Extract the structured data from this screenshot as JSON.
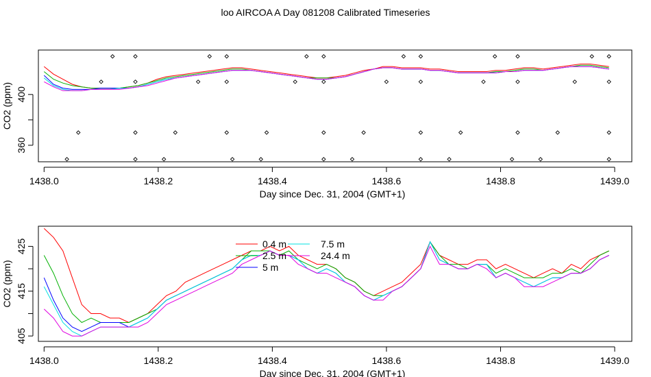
{
  "window": {
    "title": "loo AIRCOA A  Day 081208  Calibrated Timeseries"
  },
  "legend": [
    {
      "label": "0.4 m",
      "color": "#ff0000"
    },
    {
      "label": "2.5 m",
      "color": "#00b000"
    },
    {
      "label": "5 m",
      "color": "#0000ff"
    },
    {
      "label": "7.5 m",
      "color": "#00e0e0"
    },
    {
      "label": "24.4 m",
      "color": "#e000e0"
    }
  ],
  "chart_data": [
    {
      "type": "line",
      "panel": "top",
      "title": "",
      "xlabel": "Day since Dec. 31, 2004 (GMT+1)",
      "ylabel": "CO2 (ppm)",
      "xlim": [
        1437.99,
        1439.03
      ],
      "ylim": [
        347,
        435
      ],
      "xticks": [
        1438.0,
        1438.2,
        1438.4,
        1438.6,
        1438.8,
        1439.0
      ],
      "xtick_labels": [
        "1438.0",
        "1438.2",
        "1438.4",
        "1438.6",
        "1438.8",
        "1439.0"
      ],
      "yticks": [
        360,
        380,
        400
      ],
      "ytick_labels": [
        "360",
        "",
        "400"
      ],
      "grid": false,
      "series": [
        {
          "name": "0.4 m",
          "color": "#ff0000",
          "values": [
            422,
            416,
            412,
            408,
            406,
            405,
            405,
            405,
            405,
            406,
            407,
            409,
            412,
            414,
            415,
            416,
            417,
            418,
            419,
            420,
            421,
            421,
            420,
            419,
            418,
            417,
            416,
            415,
            414,
            413,
            413,
            414,
            415,
            417,
            419,
            420,
            422,
            422,
            421,
            421,
            421,
            420,
            420,
            419,
            418,
            418,
            418,
            418,
            419,
            419,
            420,
            421,
            421,
            420,
            421,
            422,
            423,
            424,
            424,
            423,
            422
          ]
        },
        {
          "name": "2.5 m",
          "color": "#00b000",
          "values": [
            418,
            412,
            409,
            407,
            406,
            405,
            405,
            405,
            405,
            406,
            407,
            409,
            411,
            413,
            414,
            415,
            416,
            417,
            418,
            419,
            420,
            420,
            419,
            418,
            417,
            416,
            415,
            414,
            413,
            413,
            413,
            413,
            414,
            416,
            418,
            420,
            421,
            421,
            420,
            420,
            420,
            419,
            419,
            418,
            417,
            417,
            417,
            417,
            418,
            418,
            419,
            420,
            420,
            419,
            420,
            421,
            422,
            423,
            423,
            422,
            421
          ]
        },
        {
          "name": "5 m",
          "color": "#0000ff",
          "values": [
            415,
            408,
            405,
            404,
            404,
            404,
            405,
            405,
            405,
            405,
            406,
            408,
            410,
            412,
            413,
            414,
            415,
            416,
            417,
            418,
            419,
            419,
            419,
            418,
            417,
            416,
            415,
            414,
            413,
            412,
            412,
            413,
            414,
            416,
            418,
            420,
            421,
            421,
            420,
            420,
            420,
            419,
            419,
            418,
            417,
            417,
            417,
            417,
            417,
            418,
            418,
            419,
            419,
            419,
            420,
            421,
            422,
            422,
            422,
            421,
            420
          ]
        },
        {
          "name": "7.5 m",
          "color": "#00e0e0",
          "values": [
            413,
            407,
            404,
            403,
            403,
            404,
            404,
            404,
            405,
            405,
            406,
            408,
            410,
            412,
            413,
            414,
            415,
            416,
            417,
            418,
            419,
            419,
            419,
            418,
            417,
            416,
            415,
            414,
            413,
            412,
            412,
            413,
            414,
            416,
            418,
            420,
            421,
            421,
            420,
            420,
            420,
            419,
            419,
            418,
            417,
            417,
            417,
            417,
            417,
            418,
            418,
            419,
            419,
            419,
            420,
            421,
            422,
            422,
            422,
            421,
            420
          ]
        },
        {
          "name": "24.4 m",
          "color": "#e000e0",
          "values": [
            410,
            406,
            403,
            403,
            403,
            404,
            404,
            404,
            404,
            405,
            406,
            407,
            409,
            411,
            413,
            414,
            415,
            416,
            417,
            418,
            419,
            419,
            419,
            418,
            417,
            416,
            415,
            414,
            413,
            412,
            412,
            413,
            414,
            416,
            418,
            420,
            421,
            421,
            420,
            420,
            420,
            419,
            419,
            418,
            417,
            417,
            417,
            417,
            417,
            418,
            418,
            419,
            419,
            419,
            420,
            421,
            422,
            422,
            422,
            421,
            420
          ]
        }
      ],
      "markers": {
        "row_430": [
          1438.12,
          1438.16,
          1438.29,
          1438.32,
          1438.46,
          1438.49,
          1438.63,
          1438.66,
          1438.79,
          1438.83,
          1438.96,
          1438.99
        ],
        "row_410": [
          1438.1,
          1438.16,
          1438.27,
          1438.32,
          1438.44,
          1438.49,
          1438.6,
          1438.66,
          1438.77,
          1438.83,
          1438.93,
          1438.99
        ],
        "row_370": [
          1438.06,
          1438.16,
          1438.23,
          1438.32,
          1438.39,
          1438.49,
          1438.56,
          1438.66,
          1438.73,
          1438.83,
          1438.9,
          1438.99
        ],
        "row_349": [
          1438.04,
          1438.16,
          1438.21,
          1438.33,
          1438.38,
          1438.49,
          1438.54,
          1438.66,
          1438.71,
          1438.82,
          1438.87,
          1438.99
        ]
      }
    },
    {
      "type": "line",
      "panel": "bottom",
      "title": "",
      "xlabel": "Day since Dec. 31, 2004 (GMT+1)",
      "ylabel": "CO2 (ppm)",
      "xlim": [
        1437.99,
        1439.03
      ],
      "ylim": [
        403.8,
        429.5
      ],
      "xticks": [
        1438.0,
        1438.2,
        1438.4,
        1438.6,
        1438.8,
        1439.0
      ],
      "xtick_labels": [
        "1438.0",
        "1438.2",
        "1438.4",
        "1438.6",
        "1438.8",
        "1439.0"
      ],
      "yticks": [
        405,
        410,
        415,
        420,
        425
      ],
      "ytick_labels": [
        "405",
        "",
        "415",
        "",
        "425"
      ],
      "grid": false,
      "series": [
        {
          "name": "0.4 m",
          "color": "#ff0000",
          "values": [
            429,
            427,
            424,
            418,
            412,
            410,
            410,
            409,
            409,
            408,
            409,
            410,
            412,
            414,
            415,
            417,
            418,
            419,
            420,
            421,
            422,
            423,
            424,
            424,
            425,
            424,
            425,
            423,
            422,
            421,
            421,
            420,
            418,
            417,
            415,
            414,
            415,
            416,
            417,
            419,
            421,
            426,
            423,
            422,
            421,
            421,
            422,
            422,
            420,
            421,
            420,
            419,
            418,
            419,
            420,
            419,
            421,
            420,
            422,
            423,
            424
          ]
        },
        {
          "name": "2.5 m",
          "color": "#00b000",
          "values": [
            423,
            419,
            414,
            410,
            408,
            409,
            408,
            408,
            408,
            408,
            409,
            410,
            411,
            413,
            414,
            415,
            416,
            417,
            418,
            419,
            420,
            422,
            424,
            424,
            424,
            423,
            424,
            422,
            421,
            420,
            421,
            420,
            418,
            417,
            415,
            414,
            414,
            415,
            416,
            418,
            420,
            426,
            423,
            421,
            421,
            420,
            421,
            421,
            419,
            420,
            419,
            418,
            418,
            418,
            419,
            419,
            420,
            419,
            421,
            423,
            424
          ]
        },
        {
          "name": "5 m",
          "color": "#0000ff",
          "values": [
            418,
            413,
            409,
            407,
            406,
            407,
            408,
            408,
            408,
            407,
            408,
            409,
            411,
            413,
            414,
            415,
            416,
            417,
            418,
            419,
            420,
            422,
            423,
            423,
            424,
            423,
            423,
            422,
            420,
            419,
            420,
            419,
            417,
            416,
            414,
            413,
            414,
            415,
            416,
            418,
            420,
            426,
            422,
            421,
            420,
            420,
            421,
            421,
            418,
            419,
            418,
            417,
            416,
            417,
            418,
            418,
            419,
            419,
            420,
            422,
            423
          ]
        },
        {
          "name": "7.5 m",
          "color": "#00e0e0",
          "values": [
            416,
            412,
            408,
            406,
            405,
            406,
            407,
            407,
            407,
            407,
            408,
            409,
            411,
            413,
            414,
            415,
            416,
            417,
            418,
            419,
            420,
            422,
            423,
            423,
            424,
            423,
            423,
            422,
            420,
            419,
            420,
            419,
            417,
            416,
            414,
            413,
            414,
            415,
            416,
            418,
            420,
            426,
            422,
            421,
            420,
            420,
            421,
            421,
            418,
            419,
            418,
            417,
            416,
            417,
            418,
            418,
            419,
            419,
            420,
            422,
            423
          ]
        },
        {
          "name": "24.4 m",
          "color": "#e000e0",
          "values": [
            411,
            409,
            406,
            405,
            405,
            406,
            407,
            407,
            407,
            407,
            407,
            408,
            410,
            412,
            413,
            414,
            415,
            416,
            417,
            418,
            419,
            421,
            422,
            423,
            424,
            423,
            423,
            421,
            420,
            419,
            419,
            418,
            417,
            416,
            414,
            413,
            413,
            415,
            416,
            418,
            420,
            425,
            421,
            421,
            420,
            420,
            421,
            420,
            418,
            419,
            418,
            416,
            416,
            416,
            417,
            418,
            419,
            419,
            420,
            422,
            423
          ]
        }
      ]
    }
  ]
}
